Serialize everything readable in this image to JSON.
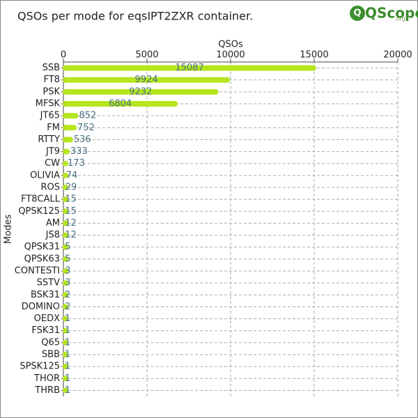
{
  "logo": {
    "text": "QScope",
    "suffix": ".org"
  },
  "chart_data": {
    "type": "barh",
    "title": "QSOs per mode for eqsIPT2ZXR container.",
    "x_label": "QSOs",
    "y_label": "Modes",
    "categories": [
      "SSB",
      "FT8",
      "PSK",
      "MFSK",
      "JT65",
      "FM",
      "RTTY",
      "JT9",
      "CW",
      "OLIVIA",
      "ROS",
      "FT8CALL",
      "QPSK125",
      "AM",
      "JS8",
      "QPSK31",
      "QPSK63",
      "CONTESTI",
      "SSTV",
      "BSK31",
      "DOMINO",
      "OEDX",
      "FSK31",
      "Q65",
      "SBB",
      "SPSK125",
      "THOR",
      "THRB"
    ],
    "values": [
      15087,
      9924,
      9232,
      6804,
      852,
      752,
      536,
      333,
      173,
      74,
      29,
      15,
      15,
      12,
      12,
      5,
      5,
      3,
      3,
      2,
      2,
      1,
      1,
      1,
      1,
      1,
      1,
      1
    ],
    "color": "#b5e61d",
    "xlim": [
      0,
      20000
    ],
    "xticks": [
      0,
      5000,
      10000,
      15000,
      20000
    ],
    "grid": true
  }
}
